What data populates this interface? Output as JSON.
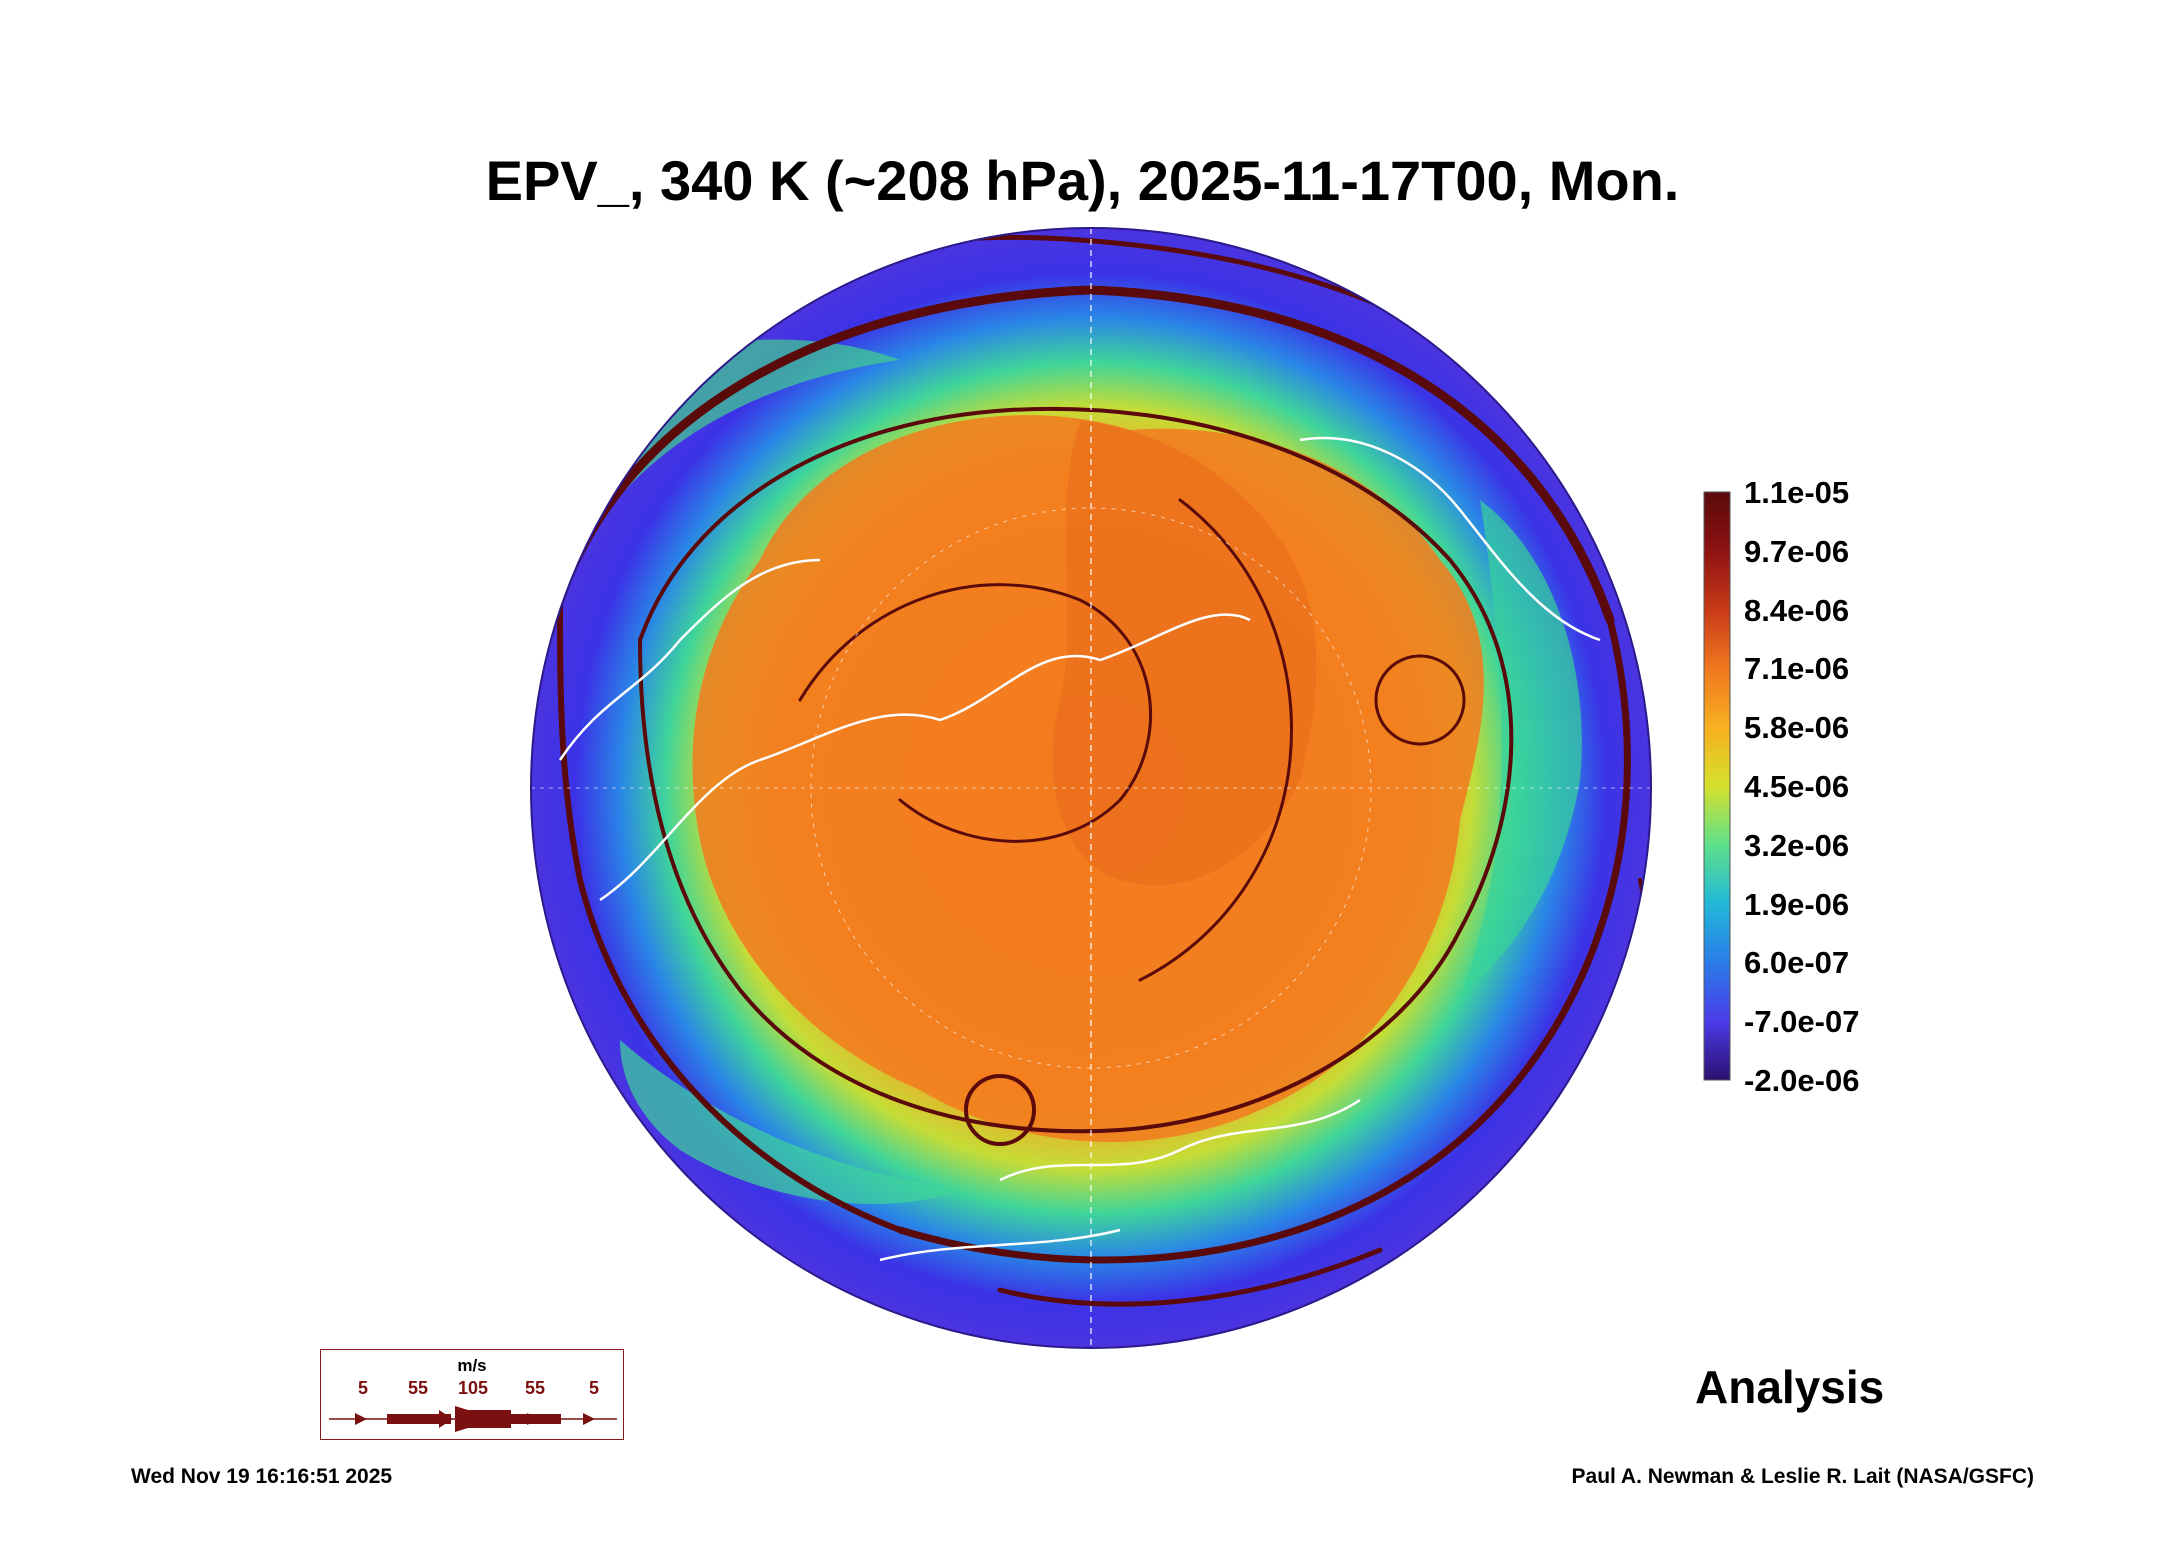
{
  "title": "EPV_, 340 K (~208 hPa), 2025-11-17T00, Mon.",
  "colorbar": {
    "labels": [
      "1.1e-05",
      "9.7e-06",
      "8.4e-06",
      "7.1e-06",
      "5.8e-06",
      "4.5e-06",
      "3.2e-06",
      "1.9e-06",
      "6.0e-07",
      "-7.0e-07",
      "-2.0e-06"
    ],
    "colors": [
      "#5a0a0a",
      "#8e1212",
      "#c83a18",
      "#f0781e",
      "#f7b020",
      "#d6e02c",
      "#5ee08a",
      "#22b8d8",
      "#2a7ce8",
      "#4a3ce8",
      "#2b1070"
    ]
  },
  "wind_key": {
    "unit": "m/s",
    "labels": [
      "5",
      "55",
      "105",
      "55",
      "5"
    ]
  },
  "stamp": "Analysis",
  "footer": {
    "date": "Wed Nov 19 16:16:51 2025",
    "credit": "Paul A. Newman & Leslie R. Lait (NASA/GSFC)"
  },
  "map_colors": {
    "ocean_outer": "#3b33e6",
    "ring_green": "#38d39a",
    "core_orange": "#f2821f",
    "streamline": "#5a0a0a",
    "coastline": "#ffffff"
  }
}
